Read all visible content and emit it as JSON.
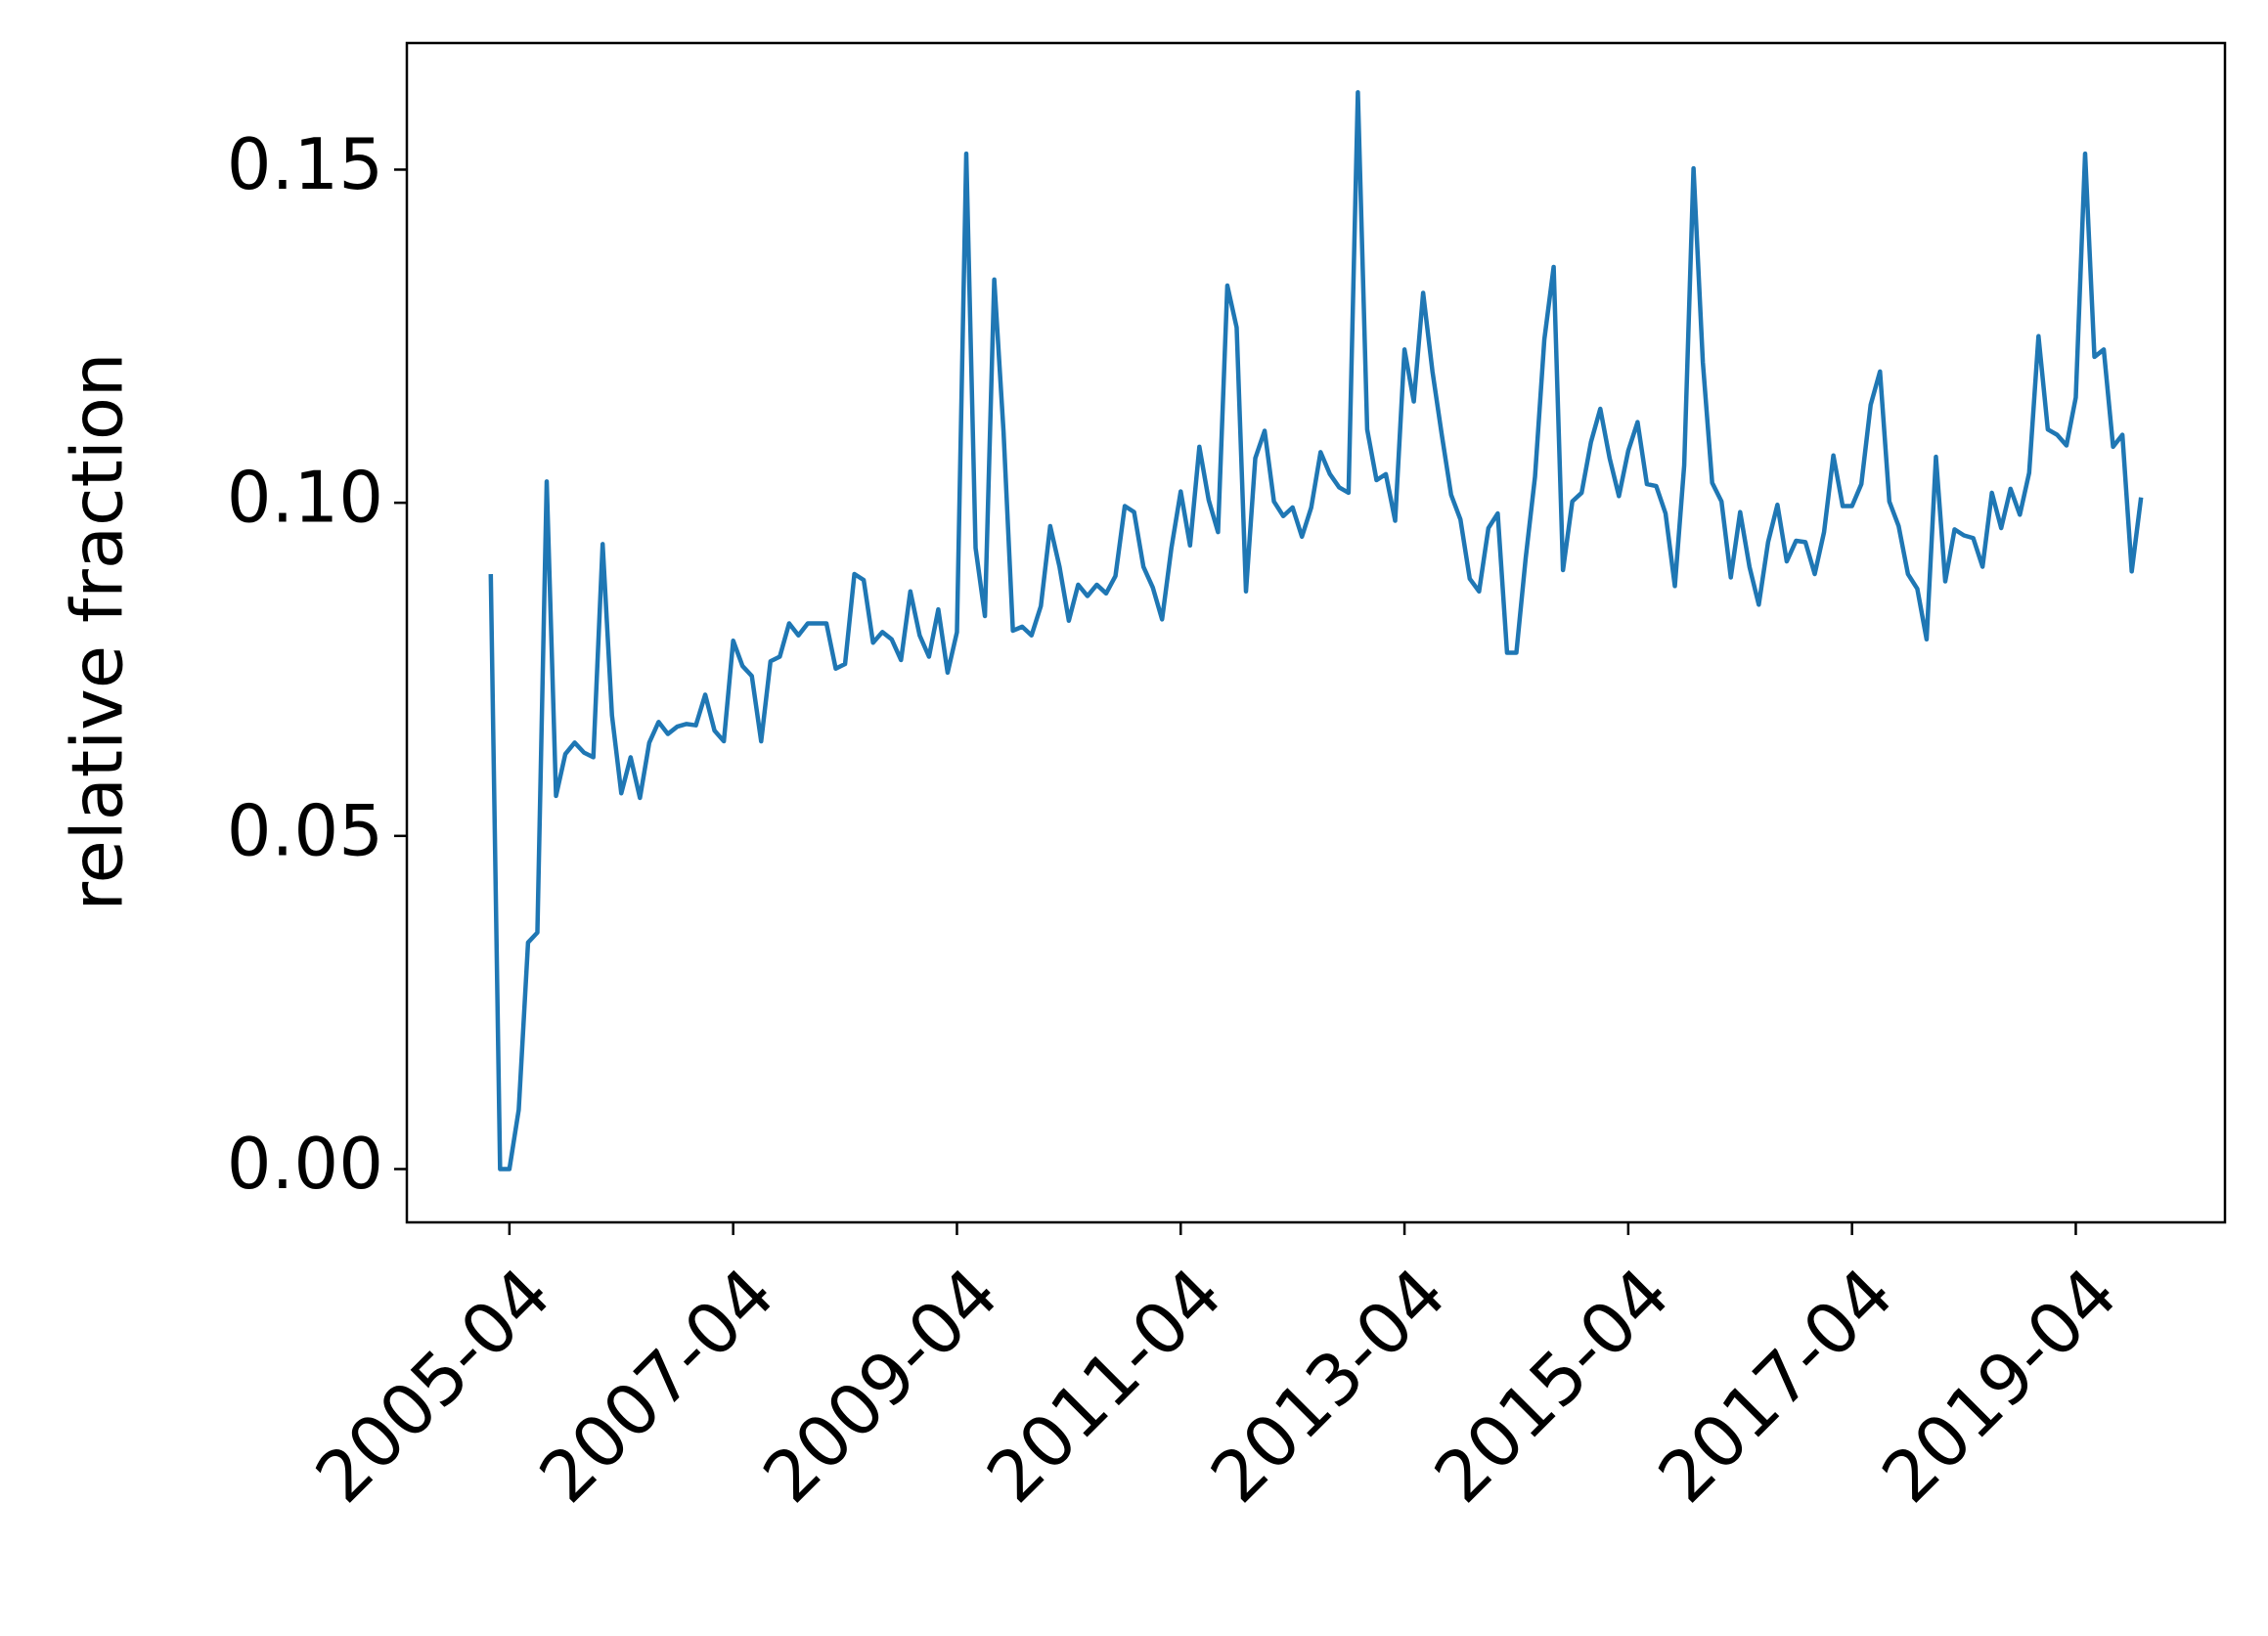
{
  "chart_data": {
    "type": "line",
    "ylabel": "relative fraction",
    "x": [
      "2005-02",
      "2005-03",
      "2005-04",
      "2005-05",
      "2005-06",
      "2005-07",
      "2005-08",
      "2005-09",
      "2005-10",
      "2005-11",
      "2005-12",
      "2006-01",
      "2006-02",
      "2006-03",
      "2006-04",
      "2006-05",
      "2006-06",
      "2006-07",
      "2006-08",
      "2006-09",
      "2006-10",
      "2006-11",
      "2006-12",
      "2007-01",
      "2007-02",
      "2007-03",
      "2007-04",
      "2007-05",
      "2007-06",
      "2007-07",
      "2007-08",
      "2007-09",
      "2007-10",
      "2007-11",
      "2007-12",
      "2008-01",
      "2008-02",
      "2008-03",
      "2008-04",
      "2008-05",
      "2008-06",
      "2008-07",
      "2008-08",
      "2008-09",
      "2008-10",
      "2008-11",
      "2008-12",
      "2009-01",
      "2009-02",
      "2009-03",
      "2009-04",
      "2009-05",
      "2009-06",
      "2009-07",
      "2009-08",
      "2009-09",
      "2009-10",
      "2009-11",
      "2009-12",
      "2010-01",
      "2010-02",
      "2010-03",
      "2010-04",
      "2010-05",
      "2010-06",
      "2010-07",
      "2010-08",
      "2010-09",
      "2010-10",
      "2010-11",
      "2010-12",
      "2011-01",
      "2011-02",
      "2011-03",
      "2011-04",
      "2011-05",
      "2011-06",
      "2011-07",
      "2011-08",
      "2011-09",
      "2011-10",
      "2011-11",
      "2011-12",
      "2012-01",
      "2012-02",
      "2012-03",
      "2012-04",
      "2012-05",
      "2012-06",
      "2012-07",
      "2012-08",
      "2012-09",
      "2012-10",
      "2012-11",
      "2012-12",
      "2013-01",
      "2013-02",
      "2013-03",
      "2013-04",
      "2013-05",
      "2013-06",
      "2013-07",
      "2013-08",
      "2013-09",
      "2013-10",
      "2013-11",
      "2013-12",
      "2014-01",
      "2014-02",
      "2014-03",
      "2014-04",
      "2014-05",
      "2014-06",
      "2014-07",
      "2014-08",
      "2014-09",
      "2014-10",
      "2014-11",
      "2014-12",
      "2015-01",
      "2015-02",
      "2015-03",
      "2015-04",
      "2015-05",
      "2015-06",
      "2015-07",
      "2015-08",
      "2015-09",
      "2015-10",
      "2015-11",
      "2015-12",
      "2016-01",
      "2016-02",
      "2016-03",
      "2016-04",
      "2016-05",
      "2016-06",
      "2016-07",
      "2016-08",
      "2016-09",
      "2016-10",
      "2016-11",
      "2016-12",
      "2017-01",
      "2017-02",
      "2017-03",
      "2017-04",
      "2017-05",
      "2017-06",
      "2017-07",
      "2017-08",
      "2017-09",
      "2017-10",
      "2017-11",
      "2017-12",
      "2018-01",
      "2018-02",
      "2018-03",
      "2018-04",
      "2018-05",
      "2018-06",
      "2018-07",
      "2018-08",
      "2018-09",
      "2018-10",
      "2018-11",
      "2018-12",
      "2019-01",
      "2019-02",
      "2019-03",
      "2019-04",
      "2019-05",
      "2019-06",
      "2019-07",
      "2019-08",
      "2019-09",
      "2019-10",
      "2019-11"
    ],
    "series": [
      {
        "name": "relative fraction",
        "color": "#1f77b4",
        "values": [
          0.0893,
          0,
          0,
          0.0089,
          0.034,
          0.0355,
          0.1032,
          0.056,
          0.0623,
          0.064,
          0.0625,
          0.0618,
          0.0938,
          0.0681,
          0.0564,
          0.0618,
          0.0557,
          0.064,
          0.0671,
          0.0653,
          0.0664,
          0.0668,
          0.0666,
          0.0712,
          0.0658,
          0.0642,
          0.0793,
          0.0755,
          0.074,
          0.0642,
          0.0762,
          0.0769,
          0.0819,
          0.0801,
          0.0819,
          0.0819,
          0.0819,
          0.0751,
          0.0758,
          0.0893,
          0.0884,
          0.079,
          0.0806,
          0.0795,
          0.0764,
          0.0867,
          0.0801,
          0.0769,
          0.084,
          0.0745,
          0.0806,
          0.1524,
          0.0932,
          0.083,
          0.1335,
          0.1106,
          0.0808,
          0.0814,
          0.0801,
          0.0845,
          0.0965,
          0.0904,
          0.0823,
          0.0877,
          0.086,
          0.0877,
          0.0864,
          0.089,
          0.0995,
          0.0986,
          0.0904,
          0.0873,
          0.0825,
          0.0932,
          0.1017,
          0.0936,
          0.1084,
          0.1004,
          0.0956,
          0.1326,
          0.1263,
          0.0867,
          0.1067,
          0.1108,
          0.1002,
          0.098,
          0.0993,
          0.0949,
          0.0993,
          0.1076,
          0.1043,
          0.1023,
          0.1015,
          0.1616,
          0.111,
          0.1034,
          0.1043,
          0.0973,
          0.123,
          0.1152,
          0.1315,
          0.1197,
          0.1102,
          0.1012,
          0.0975,
          0.0886,
          0.0867,
          0.0962,
          0.0984,
          0.0775,
          0.0775,
          0.0917,
          0.1039,
          0.1245,
          0.1354,
          0.0899,
          0.1002,
          0.1015,
          0.1091,
          0.1141,
          0.1067,
          0.101,
          0.1078,
          0.1121,
          0.1028,
          0.1025,
          0.0984,
          0.0875,
          0.1056,
          0.1502,
          0.1211,
          0.103,
          0.1002,
          0.0888,
          0.0986,
          0.0904,
          0.0847,
          0.0941,
          0.0997,
          0.0912,
          0.0943,
          0.0941,
          0.0893,
          0.0956,
          0.1071,
          0.0995,
          0.0995,
          0.1028,
          0.1147,
          0.1197,
          0.1002,
          0.0965,
          0.0893,
          0.0871,
          0.0795,
          0.1069,
          0.0882,
          0.096,
          0.0951,
          0.0947,
          0.0904,
          0.1015,
          0.0962,
          0.1021,
          0.0982,
          0.1045,
          0.125,
          0.111,
          0.1102,
          0.1086,
          0.1158,
          0.1524,
          0.1219,
          0.123,
          0.1084,
          0.1102,
          0.0897,
          0.1008
        ]
      }
    ],
    "xlim": [
      "2004-05",
      "2020-08"
    ],
    "xticks": [
      "2005-04",
      "2007-04",
      "2009-04",
      "2011-04",
      "2013-04",
      "2015-04",
      "2017-04",
      "2019-04"
    ],
    "ylim": [
      -0.008,
      0.169
    ],
    "yticks": [
      {
        "value": 0,
        "label": "0.00"
      },
      {
        "value": 0.05,
        "label": "0.05"
      },
      {
        "value": 0.1,
        "label": "0.10"
      },
      {
        "value": 0.15,
        "label": "0.15"
      }
    ],
    "grid": false
  }
}
